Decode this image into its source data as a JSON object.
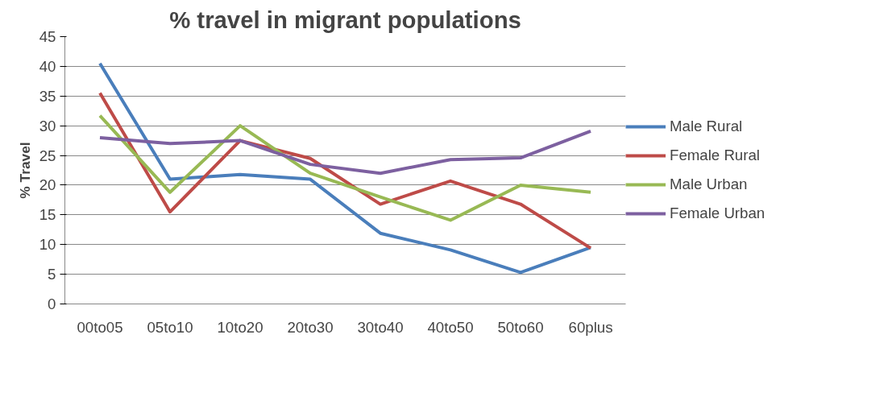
{
  "chart_data": {
    "type": "line",
    "title": "% travel in migrant populations",
    "ylabel": "% Travel",
    "categories": [
      "00to05",
      "05to10",
      "10to20",
      "20to30",
      "30to40",
      "40to50",
      "50to60",
      "60plus"
    ],
    "series": [
      {
        "name": "Male Rural",
        "color": "#4a7ebb",
        "values": [
          40.5,
          21,
          21.8,
          21,
          11.9,
          9.1,
          5.3,
          9.5
        ]
      },
      {
        "name": "Female Rural",
        "color": "#be4b48",
        "values": [
          35.5,
          15.5,
          27.5,
          24.5,
          16.8,
          20.7,
          16.8,
          9.4
        ]
      },
      {
        "name": "Male Urban",
        "color": "#98b954",
        "values": [
          31.7,
          18.8,
          30,
          22,
          18,
          14.1,
          20,
          18.8
        ]
      },
      {
        "name": "Female Urban",
        "color": "#7d60a0",
        "values": [
          28,
          27,
          27.5,
          23.5,
          22,
          24.3,
          24.6,
          29.1
        ]
      }
    ],
    "ylim": [
      0,
      45
    ],
    "yticks": [
      0,
      5,
      10,
      15,
      20,
      25,
      30,
      35,
      40,
      45
    ],
    "grid": "y",
    "legend": "right",
    "marker": "none",
    "line_style": "solid"
  }
}
